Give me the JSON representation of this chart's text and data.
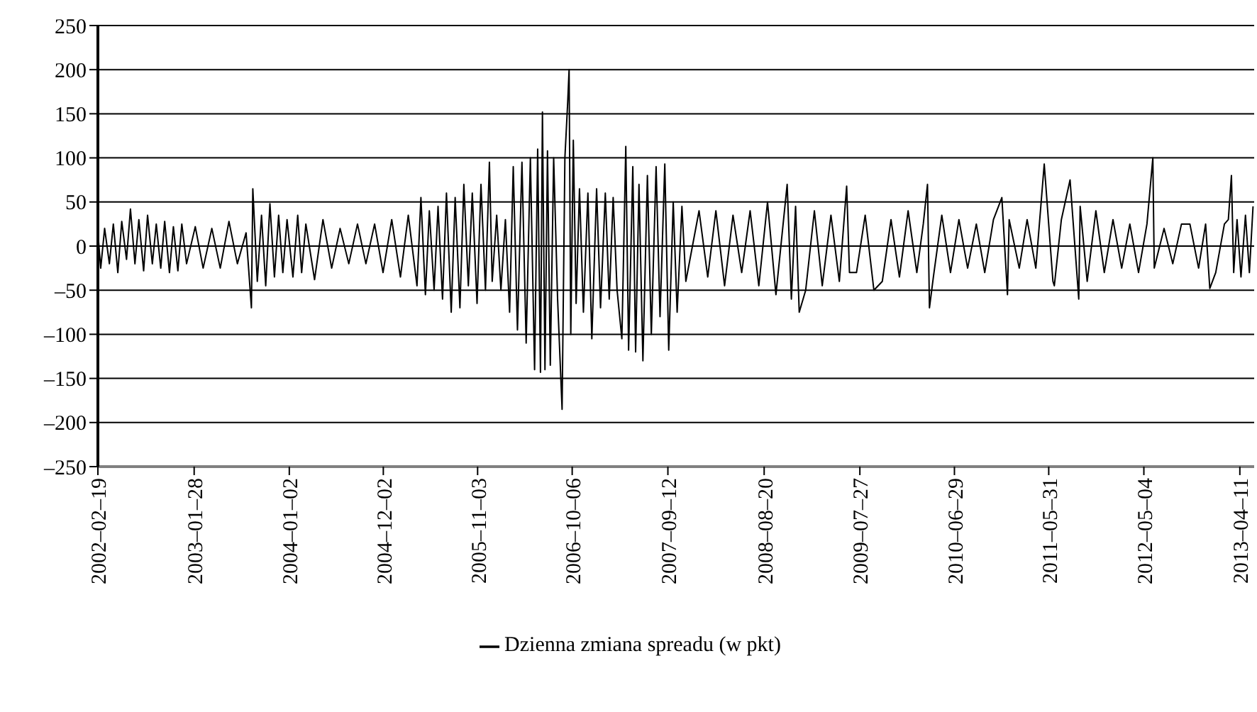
{
  "chart_data": {
    "type": "line",
    "x": [
      "2002-02-19",
      "2002-03-01",
      "2002-03-15",
      "2002-04-01",
      "2002-04-15",
      "2002-05-01",
      "2002-05-15",
      "2002-06-01",
      "2002-06-15",
      "2002-07-01",
      "2002-07-15",
      "2002-08-01",
      "2002-08-15",
      "2002-09-01",
      "2002-09-15",
      "2002-10-01",
      "2002-10-15",
      "2002-11-01",
      "2002-11-15",
      "2002-12-01",
      "2002-12-15",
      "2003-01-01",
      "2003-02-01",
      "2003-03-01",
      "2003-04-01",
      "2003-05-01",
      "2003-06-01",
      "2003-07-01",
      "2003-08-01",
      "2003-08-20",
      "2003-08-25",
      "2003-09-10",
      "2003-09-25",
      "2003-10-10",
      "2003-10-25",
      "2003-11-10",
      "2003-11-25",
      "2003-12-10",
      "2003-12-25",
      "2004-01-15",
      "2004-02-01",
      "2004-02-15",
      "2004-03-01",
      "2004-04-01",
      "2004-05-01",
      "2004-06-01",
      "2004-07-01",
      "2004-08-01",
      "2004-09-01",
      "2004-10-01",
      "2004-11-01",
      "2004-12-01",
      "2005-01-01",
      "2005-02-01",
      "2005-03-01",
      "2005-04-01",
      "2005-04-15",
      "2005-05-01",
      "2005-05-15",
      "2005-06-01",
      "2005-06-15",
      "2005-07-01",
      "2005-07-15",
      "2005-08-01",
      "2005-08-15",
      "2005-09-01",
      "2005-09-15",
      "2005-10-01",
      "2005-10-15",
      "2005-11-01",
      "2005-11-15",
      "2005-12-01",
      "2005-12-15",
      "2005-12-25",
      "2006-01-10",
      "2006-01-25",
      "2006-02-10",
      "2006-02-25",
      "2006-03-10",
      "2006-03-25",
      "2006-04-10",
      "2006-04-25",
      "2006-05-10",
      "2006-05-25",
      "2006-06-05",
      "2006-06-15",
      "2006-06-22",
      "2006-07-01",
      "2006-07-10",
      "2006-07-20",
      "2006-08-01",
      "2006-08-15",
      "2006-08-31",
      "2006-09-10",
      "2006-09-20",
      "2006-09-25",
      "2006-10-01",
      "2006-10-10",
      "2006-10-20",
      "2006-11-01",
      "2006-11-15",
      "2006-12-01",
      "2006-12-15",
      "2007-01-01",
      "2007-01-15",
      "2007-02-01",
      "2007-02-15",
      "2007-03-01",
      "2007-03-15",
      "2007-04-01",
      "2007-04-15",
      "2007-04-25",
      "2007-05-10",
      "2007-05-20",
      "2007-06-01",
      "2007-06-15",
      "2007-07-01",
      "2007-07-15",
      "2007-08-01",
      "2007-08-15",
      "2007-09-01",
      "2007-09-15",
      "2007-10-01",
      "2007-10-15",
      "2007-11-01",
      "2007-11-15",
      "2008-01-01",
      "2008-02-01",
      "2008-03-01",
      "2008-04-01",
      "2008-05-01",
      "2008-06-01",
      "2008-07-01",
      "2008-08-01",
      "2008-09-01",
      "2008-10-01",
      "2008-11-10",
      "2008-11-25",
      "2008-12-10",
      "2008-12-23",
      "2009-01-15",
      "2009-02-15",
      "2009-03-15",
      "2009-04-15",
      "2009-05-15",
      "2009-06-10",
      "2009-06-20",
      "2009-07-15",
      "2009-08-15",
      "2009-09-15",
      "2009-10-15",
      "2009-11-15",
      "2009-12-15",
      "2010-01-15",
      "2010-02-15",
      "2010-03-10",
      "2010-03-25",
      "2010-04-01",
      "2010-04-15",
      "2010-05-15",
      "2010-06-15",
      "2010-07-15",
      "2010-08-15",
      "2010-09-15",
      "2010-10-15",
      "2010-11-15",
      "2010-12-15",
      "2011-01-04",
      "2011-01-10",
      "2011-02-15",
      "2011-03-15",
      "2011-04-15",
      "2011-05-15",
      "2011-06-15",
      "2011-06-20",
      "2011-07-15",
      "2011-08-15",
      "2011-09-15",
      "2011-09-20",
      "2011-10-15",
      "2011-11-15",
      "2011-12-15",
      "2012-01-15",
      "2012-02-15",
      "2012-03-15",
      "2012-04-15",
      "2012-05-15",
      "2012-06-05",
      "2012-06-10",
      "2012-07-15",
      "2012-08-15",
      "2012-09-15",
      "2012-10-15",
      "2012-11-15",
      "2012-12-10",
      "2012-12-25",
      "2013-01-15",
      "2013-02-15",
      "2013-03-01",
      "2013-03-12",
      "2013-03-20",
      "2013-04-01",
      "2013-04-15",
      "2013-05-01",
      "2013-05-15",
      "2013-05-28"
    ],
    "series": [
      {
        "name": "Dzienna zmiana spreadu (w pkt)",
        "color": "#000000",
        "values": [
          15,
          -25,
          20,
          -20,
          25,
          -30,
          28,
          -15,
          42,
          -20,
          30,
          -28,
          35,
          -20,
          25,
          -25,
          28,
          -30,
          22,
          -28,
          25,
          -20,
          22,
          -25,
          20,
          -25,
          28,
          -20,
          15,
          -70,
          65,
          -40,
          35,
          -45,
          48,
          -35,
          35,
          -30,
          30,
          -35,
          35,
          -30,
          25,
          -38,
          30,
          -25,
          20,
          -20,
          25,
          -20,
          25,
          -30,
          30,
          -35,
          35,
          -45,
          55,
          -55,
          40,
          -50,
          45,
          -60,
          60,
          -75,
          55,
          -70,
          70,
          -45,
          60,
          -65,
          70,
          -50,
          95,
          -40,
          35,
          -50,
          30,
          -75,
          90,
          -95,
          95,
          -110,
          100,
          -140,
          110,
          -143,
          152,
          -140,
          108,
          -135,
          100,
          -60,
          -185,
          100,
          163,
          200,
          -100,
          120,
          -65,
          65,
          -75,
          60,
          -105,
          65,
          -70,
          60,
          -60,
          55,
          -50,
          -105,
          113,
          -118,
          90,
          -120,
          70,
          -130,
          80,
          -100,
          90,
          -80,
          93,
          -118,
          50,
          -75,
          45,
          -40,
          40,
          -35,
          40,
          -45,
          35,
          -30,
          40,
          -45,
          50,
          -55,
          70,
          -60,
          45,
          -75,
          -50,
          40,
          -45,
          35,
          -40,
          68,
          -30,
          -30,
          35,
          -50,
          -40,
          30,
          -35,
          40,
          -30,
          25,
          70,
          -70,
          -35,
          35,
          -30,
          30,
          -25,
          25,
          -30,
          30,
          55,
          -55,
          30,
          -25,
          30,
          -25,
          93,
          -40,
          -45,
          30,
          75,
          -60,
          45,
          -40,
          40,
          -30,
          30,
          -25,
          25,
          -30,
          25,
          100,
          -25,
          20,
          -20,
          25,
          25,
          -25,
          25,
          -48,
          -30,
          25,
          30,
          80,
          -30,
          30,
          -35,
          35,
          -30,
          45
        ]
      }
    ],
    "xlim": [
      "2002-02-19",
      "2013-06-01"
    ],
    "xticks": [
      {
        "value": "2002-02-19",
        "label": "2002–02–19"
      },
      {
        "value": "2003-01-28",
        "label": "2003–01–28"
      },
      {
        "value": "2004-01-02",
        "label": "2004–01–02"
      },
      {
        "value": "2004-12-02",
        "label": "2004–12–02"
      },
      {
        "value": "2005-11-03",
        "label": "2005–11–03"
      },
      {
        "value": "2006-10-06",
        "label": "2006–10–06"
      },
      {
        "value": "2007-09-12",
        "label": "2007–09–12"
      },
      {
        "value": "2008-08-20",
        "label": "2008–08–20"
      },
      {
        "value": "2009-07-27",
        "label": "2009–07–27"
      },
      {
        "value": "2010-06-29",
        "label": "2010–06–29"
      },
      {
        "value": "2011-05-31",
        "label": "2011–05–31"
      },
      {
        "value": "2012-05-04",
        "label": "2012–05–04"
      },
      {
        "value": "2013-04-11",
        "label": "2013–04–11"
      }
    ],
    "ylim": [
      -250,
      250
    ],
    "yticks": [
      {
        "value": -250,
        "label": "–250"
      },
      {
        "value": -200,
        "label": "–200"
      },
      {
        "value": -150,
        "label": "–150"
      },
      {
        "value": -100,
        "label": "–100"
      },
      {
        "value": -50,
        "label": "–50"
      },
      0,
      50,
      100,
      150,
      200,
      250
    ],
    "grid": "y",
    "legend": "bottom",
    "marker": "none",
    "line_style": "solid"
  }
}
